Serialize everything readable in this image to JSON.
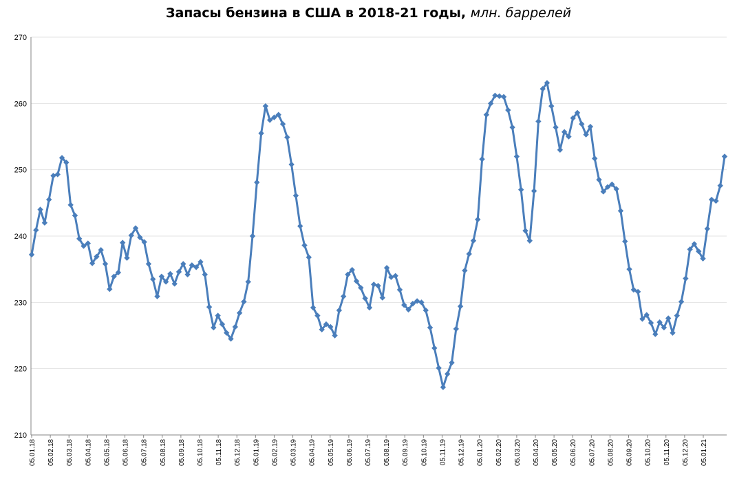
{
  "chart_data": {
    "type": "line",
    "title": "Запасы бензина в США в 2018-21 годы,",
    "title_units": "млн. баррелей",
    "xlabel": "",
    "ylabel": "",
    "ylim": [
      210,
      270
    ],
    "yticks": [
      210,
      220,
      230,
      240,
      250,
      260,
      270
    ],
    "grid": true,
    "legend": "none",
    "line_color": "#4a7ebb",
    "x_ticks": [
      "05.01.18",
      "05.02.18",
      "05.03.18",
      "05.04.18",
      "05.05.18",
      "05.06.18",
      "05.07.18",
      "05.08.18",
      "05.09.18",
      "05.10.18",
      "05.11.18",
      "05.12.18",
      "05.01.19",
      "05.02.19",
      "05.03.19",
      "05.04.19",
      "05.05.19",
      "05.06.19",
      "05.07.19",
      "05.08.19",
      "05.09.19",
      "05.10.19",
      "05.11.19",
      "05.12.19",
      "05.01.20",
      "05.02.20",
      "05.03.20",
      "05.04.20",
      "05.05.20",
      "05.06.20",
      "05.07.20",
      "05.08.20",
      "05.09.20",
      "05.10.20",
      "05.11.20",
      "05.12.20",
      "05.01.21"
    ],
    "values": [
      237.2,
      240.9,
      244.0,
      242.0,
      245.5,
      249.1,
      249.3,
      251.8,
      251.1,
      244.7,
      243.1,
      239.6,
      238.5,
      238.9,
      235.9,
      236.9,
      237.9,
      235.8,
      232.0,
      233.9,
      234.5,
      239.0,
      236.7,
      240.1,
      241.2,
      239.8,
      239.1,
      235.8,
      233.5,
      230.9,
      233.9,
      233.1,
      234.3,
      232.8,
      234.6,
      235.8,
      234.2,
      235.6,
      235.3,
      236.1,
      234.2,
      229.3,
      226.2,
      228.0,
      226.7,
      225.4,
      224.5,
      226.3,
      228.4,
      230.1,
      233.1,
      240.0,
      248.1,
      255.5,
      259.6,
      257.5,
      257.9,
      258.3,
      256.9,
      254.9,
      250.8,
      246.1,
      241.5,
      238.6,
      236.8,
      229.2,
      228.0,
      225.9,
      226.7,
      226.3,
      225.0,
      228.8,
      230.9,
      234.2,
      234.9,
      233.2,
      232.2,
      230.6,
      229.2,
      232.7,
      232.5,
      230.7,
      235.2,
      233.8,
      234.0,
      231.9,
      229.6,
      228.9,
      229.8,
      230.2,
      230.0,
      228.8,
      226.2,
      223.1,
      220.1,
      217.2,
      219.2,
      220.9,
      226.0,
      229.4,
      234.8,
      237.3,
      239.3,
      242.5,
      251.6,
      258.3,
      260.0,
      261.2,
      261.1,
      261.0,
      259.0,
      256.4,
      252.0,
      247.0,
      240.8,
      239.3,
      246.8,
      257.3,
      262.2,
      263.1,
      259.6,
      256.4,
      253.0,
      255.7,
      255.0,
      257.8,
      258.6,
      256.9,
      255.3,
      256.5,
      251.7,
      248.5,
      246.7,
      247.4,
      247.8,
      247.1,
      243.8,
      239.2,
      235.0,
      231.9,
      231.6,
      227.5,
      228.1,
      226.9,
      225.2,
      227.0,
      226.2,
      227.6,
      225.4,
      228.0,
      230.1,
      233.6,
      238.0,
      238.8,
      237.7,
      236.6,
      241.1,
      245.5,
      245.3,
      247.6,
      252.0
    ]
  }
}
